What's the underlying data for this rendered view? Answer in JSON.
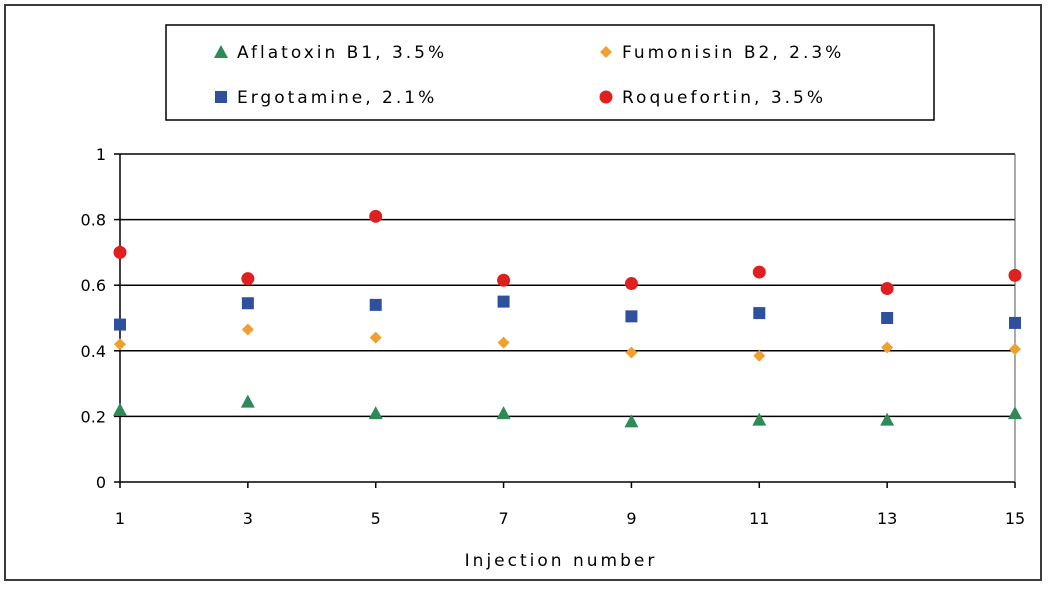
{
  "chart_data": {
    "type": "scatter",
    "title": "",
    "xlabel": "Injection number",
    "ylabel": "",
    "x": [
      1,
      3,
      5,
      7,
      9,
      11,
      13,
      15
    ],
    "xticks": [
      "1",
      "3",
      "5",
      "7",
      "9",
      "11",
      "13",
      "15"
    ],
    "yticks": [
      "0",
      "0.2",
      "0.4",
      "0.6",
      "0.8",
      "1"
    ],
    "xlim": [
      1,
      15
    ],
    "ylim": [
      0,
      1
    ],
    "grid": "horizontal",
    "legend_position": "top",
    "series": [
      {
        "name": "Aflatoxin B1, 3.5%",
        "marker": "triangle",
        "color": "#2e8b57",
        "values": [
          0.22,
          0.245,
          0.21,
          0.21,
          0.185,
          0.19,
          0.19,
          0.21
        ]
      },
      {
        "name": "Fumonisin B2, 2.3%",
        "marker": "diamond",
        "color": "#f0a030",
        "values": [
          0.42,
          0.465,
          0.44,
          0.425,
          0.395,
          0.385,
          0.41,
          0.405
        ]
      },
      {
        "name": "Ergotamine, 2.1%",
        "marker": "square",
        "color": "#2f4f9f",
        "values": [
          0.48,
          0.545,
          0.54,
          0.55,
          0.505,
          0.515,
          0.5,
          0.485
        ]
      },
      {
        "name": "Roquefortin, 3.5%",
        "marker": "circle",
        "color": "#e02020",
        "values": [
          0.7,
          0.62,
          0.81,
          0.615,
          0.605,
          0.64,
          0.59,
          0.63
        ]
      }
    ]
  }
}
